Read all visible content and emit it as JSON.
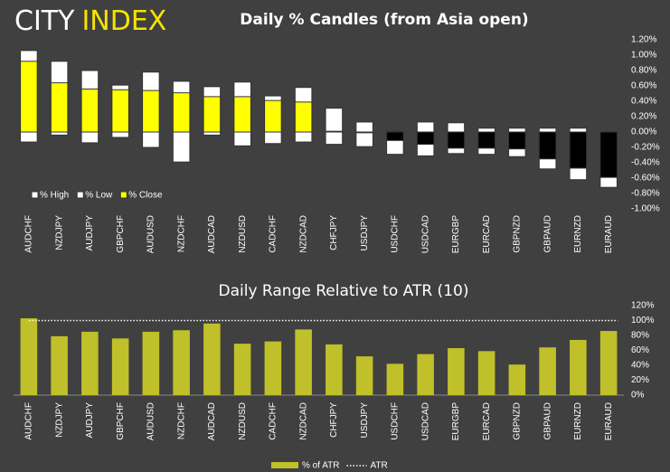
{
  "logo": {
    "left": "CITY",
    "right": "INDEX"
  },
  "chart_data": [
    {
      "type": "candle",
      "title": "Daily % Candles (from Asia open)",
      "categories": [
        "AUDCHF",
        "NZDJPY",
        "AUDJPY",
        "GBPCHF",
        "AUDUSD",
        "NZDCHF",
        "AUDCAD",
        "NZDUSD",
        "CADCHF",
        "NZDCAD",
        "CHFJPY",
        "USDJPY",
        "USDCHF",
        "USDCAD",
        "EURGBP",
        "EURCAD",
        "GBPNZD",
        "GBPAUD",
        "EURNZD",
        "EURAUD"
      ],
      "series": [
        {
          "name": "% High",
          "color": "#ffffff",
          "values": [
            1.06,
            0.92,
            0.8,
            0.61,
            0.78,
            0.66,
            0.59,
            0.65,
            0.47,
            0.58,
            0.31,
            0.13,
            0.01,
            0.13,
            0.12,
            0.05,
            0.05,
            0.05,
            0.05,
            0.0
          ]
        },
        {
          "name": "% Low",
          "color": "#ffffff",
          "values": [
            -0.13,
            -0.04,
            -0.14,
            -0.07,
            -0.2,
            -0.39,
            -0.04,
            -0.18,
            -0.15,
            -0.13,
            -0.16,
            -0.19,
            -0.29,
            -0.31,
            -0.28,
            -0.29,
            -0.32,
            -0.48,
            -0.62,
            -0.72
          ]
        },
        {
          "name": "% Close",
          "color": "#ffff00",
          "negative_color": "#000000",
          "values": [
            0.92,
            0.64,
            0.56,
            0.55,
            0.54,
            0.51,
            0.46,
            0.46,
            0.41,
            0.39,
            0.01,
            -0.01,
            -0.11,
            -0.16,
            -0.21,
            -0.21,
            -0.22,
            -0.35,
            -0.47,
            -0.59
          ]
        }
      ],
      "ylim": [
        -1.0,
        1.2
      ],
      "yticks": [
        {
          "value": 1.2,
          "label": "1.20%"
        },
        {
          "value": 1.0,
          "label": "1.00%"
        },
        {
          "value": 0.8,
          "label": "0.80%"
        },
        {
          "value": 0.6,
          "label": "0.60%"
        },
        {
          "value": 0.4,
          "label": "0.40%"
        },
        {
          "value": 0.2,
          "label": "0.20%"
        },
        {
          "value": 0.0,
          "label": "0.00%"
        },
        {
          "value": -0.2,
          "label": "-0.20%"
        },
        {
          "value": -0.4,
          "label": "-0.40%"
        },
        {
          "value": -0.6,
          "label": "-0.60%"
        },
        {
          "value": -0.8,
          "label": "-0.80%"
        },
        {
          "value": -1.0,
          "label": "-1.00%"
        }
      ],
      "legend": "lower left"
    },
    {
      "type": "bar",
      "title": "Daily Range Relative to ATR (10)",
      "categories": [
        "AUDCHF",
        "NZDJPY",
        "AUDJPY",
        "GBPCHF",
        "AUDUSD",
        "NZDCHF",
        "AUDCAD",
        "NZDUSD",
        "CADCHF",
        "NZDCAD",
        "CHFJPY",
        "USDJPY",
        "USDCHF",
        "USDCAD",
        "EURGBP",
        "EURCAD",
        "GBPNZD",
        "GBPAUD",
        "EURNZD",
        "EURAUD"
      ],
      "series": [
        {
          "name": "% of ATR",
          "color": "#c0c02a",
          "values": [
            103,
            79,
            85,
            76,
            85,
            87,
            96,
            69,
            72,
            88,
            68,
            52,
            42,
            55,
            63,
            59,
            41,
            64,
            74,
            86
          ]
        }
      ],
      "reference_line": {
        "name": "ATR",
        "value": 100,
        "color": "#ffffff"
      },
      "ylim": [
        0,
        120
      ],
      "yticks": [
        {
          "value": 0,
          "label": "0%"
        },
        {
          "value": 20,
          "label": "20%"
        },
        {
          "value": 40,
          "label": "40%"
        },
        {
          "value": 60,
          "label": "60%"
        },
        {
          "value": 80,
          "label": "80%"
        },
        {
          "value": 100,
          "label": "100%"
        },
        {
          "value": 120,
          "label": "120%"
        }
      ],
      "legend": "bottom"
    }
  ]
}
